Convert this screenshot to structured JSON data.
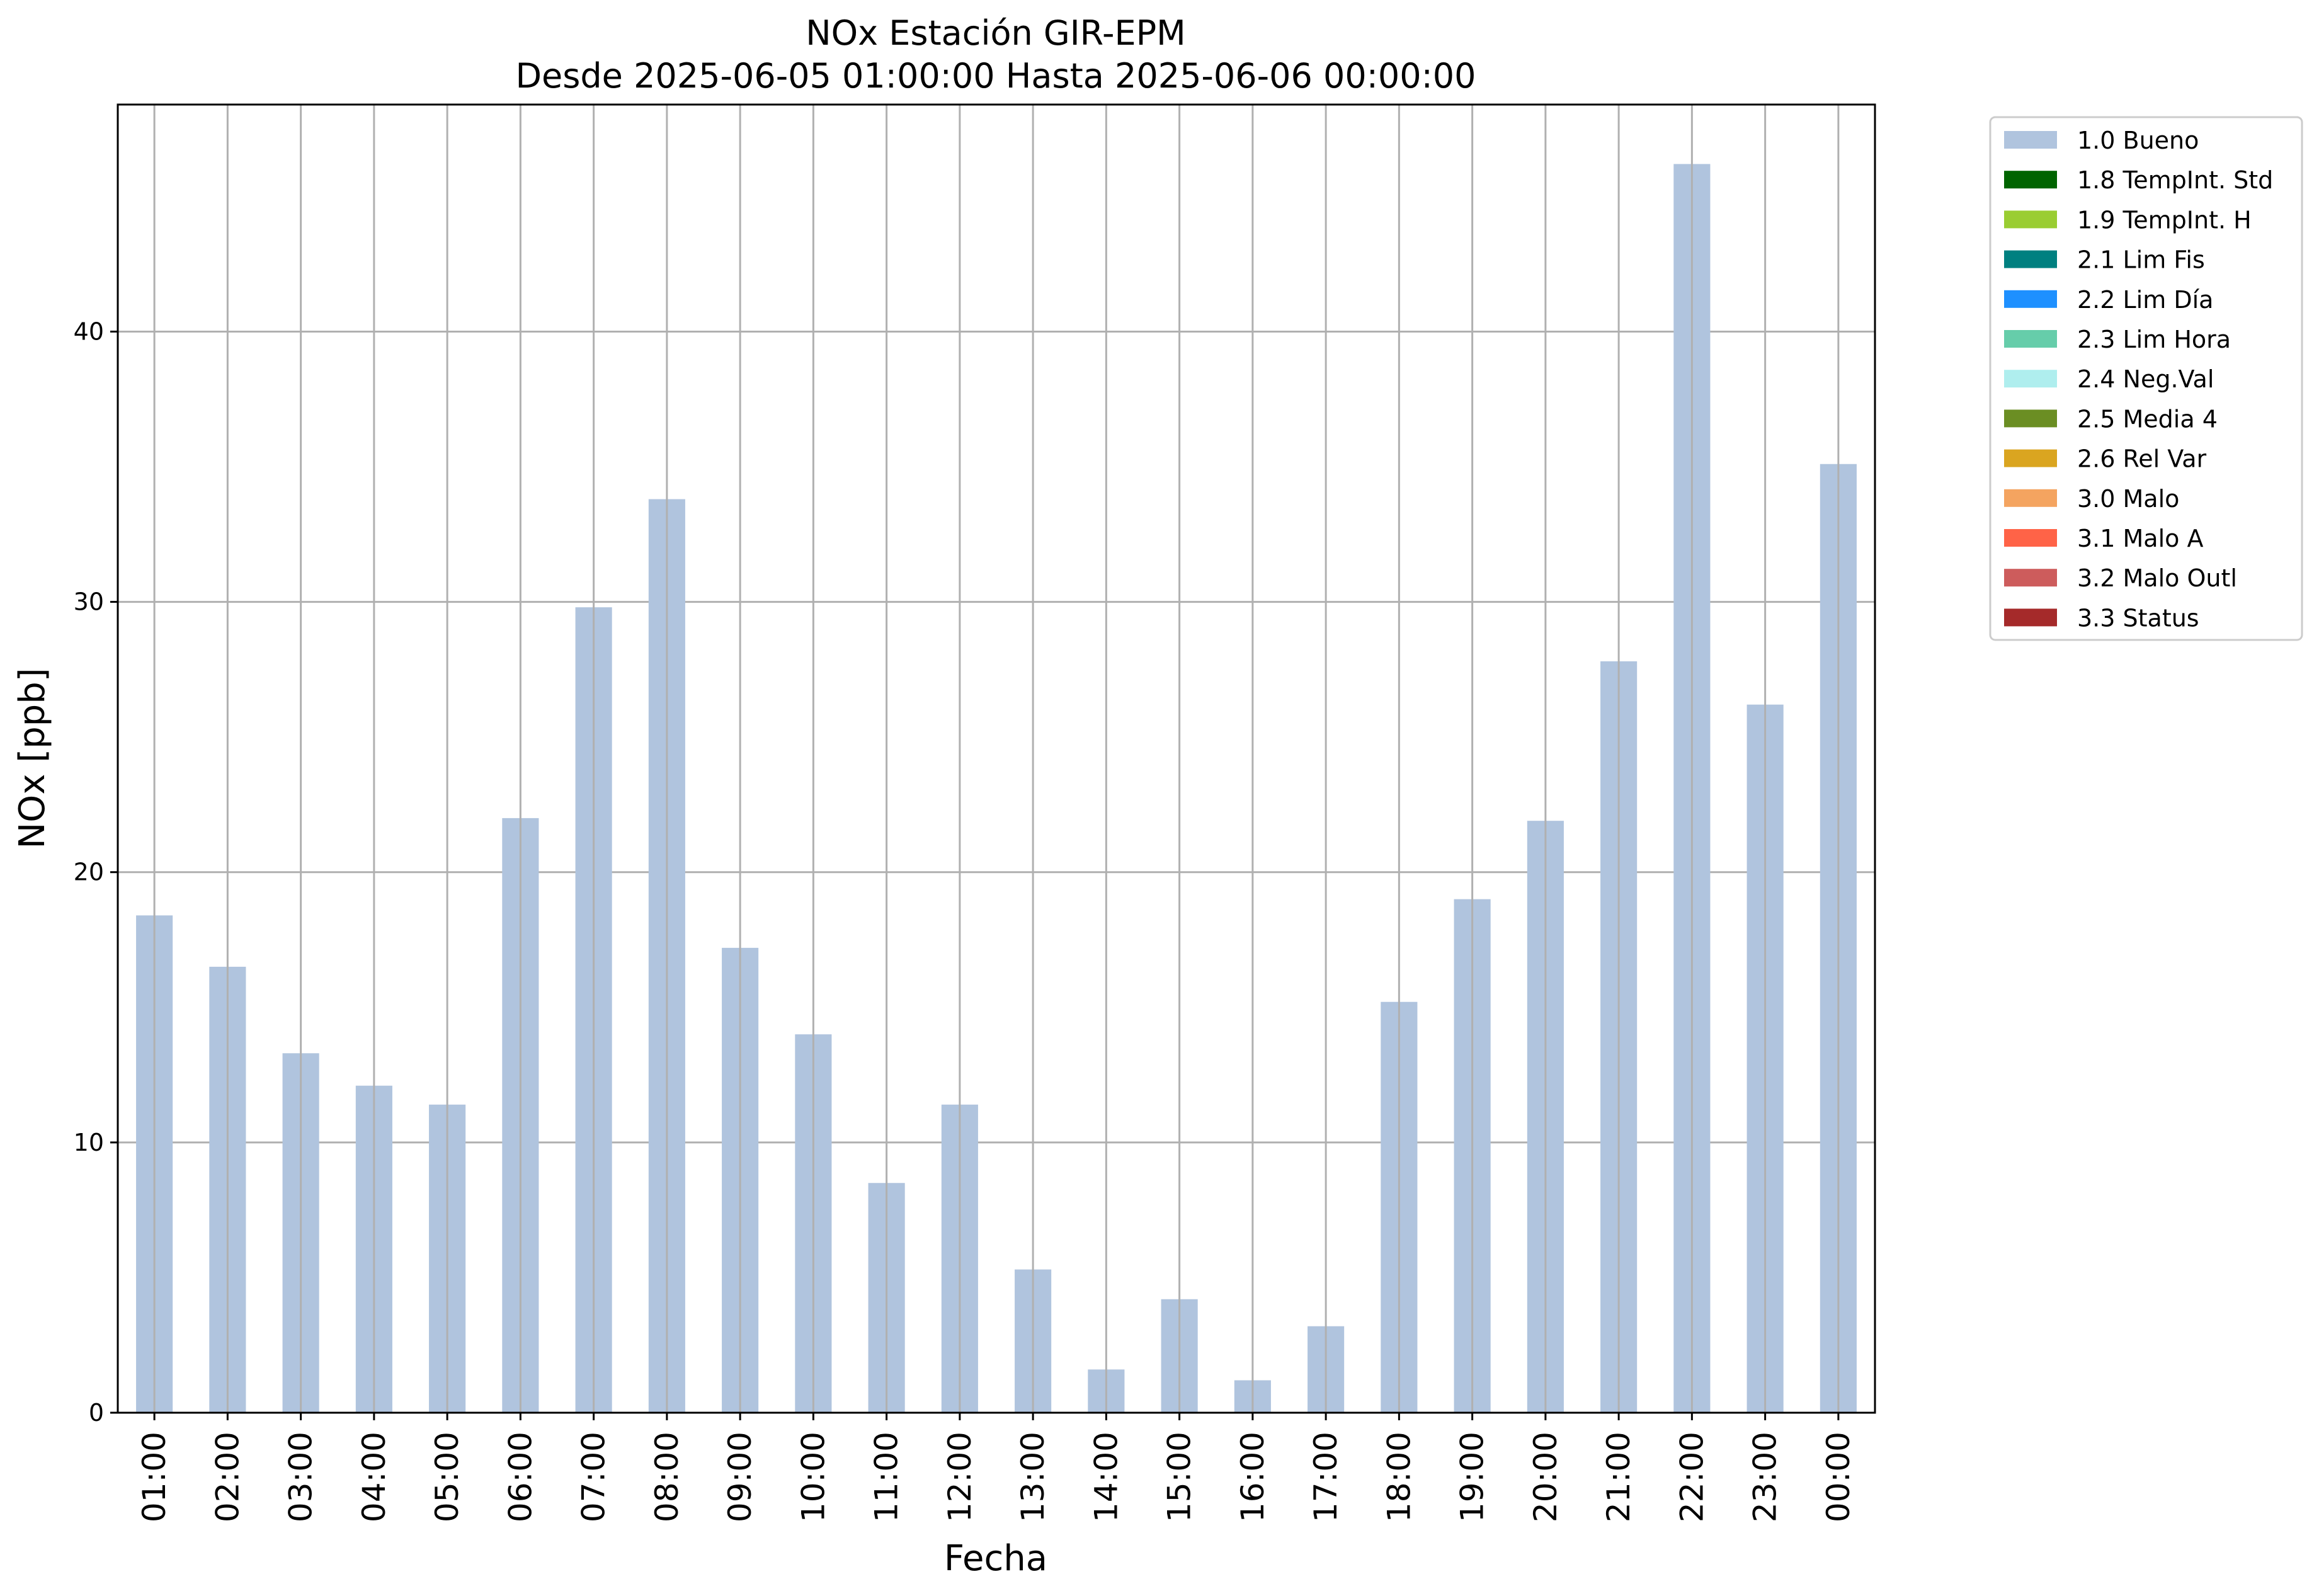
{
  "chart_data": {
    "type": "bar",
    "title": "NOx Estación GIR-EPM",
    "subtitle": "Desde 2025-06-05 01:00:00 Hasta 2025-06-06 00:00:00",
    "xlabel": "Fecha",
    "ylabel": "NOx [ppb]",
    "ylim": [
      0,
      48.4
    ],
    "yticks": [
      "0",
      "10",
      "20",
      "30",
      "40"
    ],
    "grid": true,
    "legend_position": "outside-top-right",
    "categories": [
      "01:00",
      "02:00",
      "03:00",
      "04:00",
      "05:00",
      "06:00",
      "07:00",
      "08:00",
      "09:00",
      "10:00",
      "11:00",
      "12:00",
      "13:00",
      "14:00",
      "15:00",
      "16:00",
      "17:00",
      "18:00",
      "19:00",
      "20:00",
      "21:00",
      "22:00",
      "23:00",
      "00:00"
    ],
    "series": [
      {
        "name": "1.0 Bueno",
        "color": "#b0c4de",
        "values": [
          18.4,
          16.5,
          13.3,
          12.1,
          11.4,
          22.0,
          29.8,
          33.8,
          17.2,
          14.0,
          8.5,
          11.4,
          5.3,
          1.6,
          4.2,
          1.2,
          3.2,
          15.2,
          19.0,
          21.9,
          27.8,
          46.2,
          26.2,
          35.1
        ]
      }
    ],
    "legend": [
      {
        "label": "1.0 Bueno",
        "color": "#b0c4de"
      },
      {
        "label": "1.8 TempInt. Std",
        "color": "#006400"
      },
      {
        "label": "1.9 TempInt. H",
        "color": "#9acd32"
      },
      {
        "label": "2.1 Lim Fis",
        "color": "#008080"
      },
      {
        "label": "2.2 Lim Día",
        "color": "#1e90ff"
      },
      {
        "label": "2.3 Lim Hora",
        "color": "#66cdaa"
      },
      {
        "label": "2.4 Neg.Val",
        "color": "#afeeee"
      },
      {
        "label": "2.5 Media 4",
        "color": "#6b8e23"
      },
      {
        "label": "2.6 Rel Var",
        "color": "#daa520"
      },
      {
        "label": "3.0 Malo",
        "color": "#f4a460"
      },
      {
        "label": "3.1 Malo A",
        "color": "#ff6347"
      },
      {
        "label": "3.2 Malo Outl",
        "color": "#cd5c5c"
      },
      {
        "label": "3.3 Status",
        "color": "#a52a2a"
      }
    ]
  }
}
